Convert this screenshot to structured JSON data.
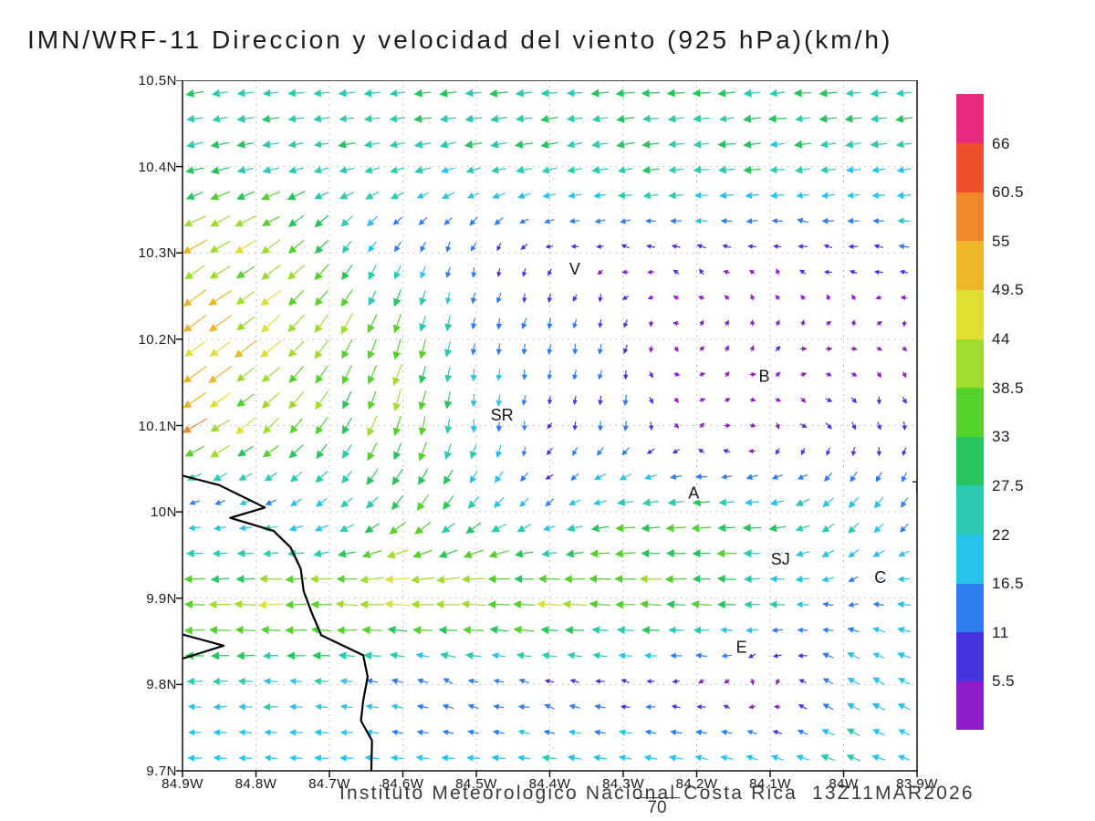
{
  "title": "IMN/WRF-11 Direccion y velocidad del viento (925 hPa)(km/h)",
  "footer": {
    "credit": "Instituto Meteorologico Nacional Costa Rica",
    "timestamp": "13Z11MAR2026",
    "stray_value": "70"
  },
  "chart_data": {
    "type": "vector-field",
    "units": "km/h",
    "map_extent": {
      "lon": [
        -84.9,
        -83.9
      ],
      "lat": [
        9.7,
        10.5
      ]
    },
    "x_ticks": {
      "values": [
        -84.9,
        -84.8,
        -84.7,
        -84.6,
        -84.5,
        -84.4,
        -84.3,
        -84.2,
        -84.1,
        -84.0,
        -83.9
      ],
      "labels": [
        "84.9W",
        "84.8W",
        "84.7W",
        "84.6W",
        "84.5W",
        "84.4W",
        "84.3W",
        "84.2W",
        "84.1W",
        "84W",
        "83.9W"
      ]
    },
    "y_ticks": {
      "values": [
        10.5,
        10.4,
        10.3,
        10.2,
        10.1,
        10.0,
        9.9,
        9.8,
        9.7
      ],
      "labels": [
        "10.5N",
        "10.4N",
        "10.3N",
        "10.2N",
        "10.1N",
        "10N",
        "9.9N",
        "9.8N",
        "9.7N"
      ]
    },
    "colorbar": {
      "levels": [
        5.5,
        11,
        16.5,
        22,
        27.5,
        33,
        38.5,
        44,
        49.5,
        55,
        60.5,
        66
      ],
      "labels": [
        "5.5",
        "11",
        "16.5",
        "22",
        "27.5",
        "33",
        "38.5",
        "44",
        "49.5",
        "55",
        "60.5",
        "66"
      ],
      "colors": [
        "#8e1cc8",
        "#4533e0",
        "#2d7df0",
        "#29c3ea",
        "#2acbb1",
        "#28c55e",
        "#55d22b",
        "#a0dc2c",
        "#e0e032",
        "#ecb62b",
        "#f1872b",
        "#f0512d",
        "#ec2a7d"
      ]
    },
    "stations": [
      {
        "label": "V",
        "lon": -84.366,
        "lat": 10.281
      },
      {
        "label": "SR",
        "lon": -84.465,
        "lat": 10.112
      },
      {
        "label": "B",
        "lon": -84.108,
        "lat": 10.157
      },
      {
        "label": "A",
        "lon": -84.204,
        "lat": 10.022
      },
      {
        "label": "SJ",
        "lon": -84.086,
        "lat": 9.945
      },
      {
        "label": "C",
        "lon": -83.95,
        "lat": 9.924
      },
      {
        "label": "E",
        "lon": -84.139,
        "lat": 9.843
      },
      {
        "label": "T",
        "lon": -83.9,
        "lat": 10.028
      }
    ],
    "coastline": [
      [
        [
          -84.9,
          10.042
        ],
        [
          -84.85,
          10.031
        ],
        [
          -84.788,
          10.005
        ],
        [
          -84.835,
          9.993
        ],
        [
          -84.776,
          9.978
        ],
        [
          -84.753,
          9.959
        ],
        [
          -84.739,
          9.934
        ],
        [
          -84.735,
          9.908
        ],
        [
          -84.724,
          9.883
        ],
        [
          -84.711,
          9.857
        ],
        [
          -84.654,
          9.834
        ],
        [
          -84.648,
          9.809
        ],
        [
          -84.654,
          9.781
        ],
        [
          -84.657,
          9.758
        ],
        [
          -84.642,
          9.735
        ],
        [
          -84.643,
          9.7
        ]
      ],
      [
        [
          -84.9,
          9.858
        ],
        [
          -84.844,
          9.845
        ],
        [
          -84.9,
          9.83
        ]
      ]
    ],
    "wind_grid": {
      "lats": [
        10.5,
        10.4,
        10.3,
        10.2,
        10.1,
        10.0,
        9.9,
        9.8,
        9.7
      ],
      "lons": [
        -84.9,
        -84.8,
        -84.7,
        -84.6,
        -84.5,
        -84.4,
        -84.3,
        -84.2,
        -84.1,
        -84.0,
        -83.9
      ],
      "u": [
        [
          -26,
          -25,
          -26,
          -26,
          -27,
          -27,
          -27,
          -26,
          -26,
          -25,
          -25
        ],
        [
          -30,
          -28,
          -24,
          -22,
          -24,
          -26,
          -27,
          -26,
          -24,
          -23,
          -22
        ],
        [
          -38,
          -34,
          -18,
          -6,
          -2,
          -4,
          -6,
          -8,
          -6,
          -10,
          -12
        ],
        [
          -42,
          -34,
          -22,
          -12,
          -2,
          -2,
          -2,
          2,
          4,
          4,
          2
        ],
        [
          -45,
          -30,
          -16,
          -10,
          -1,
          -2,
          0,
          4,
          3,
          5,
          1
        ],
        [
          -8,
          -13,
          -16,
          -20,
          -18,
          -12,
          -28,
          -30,
          -24,
          -18,
          -8
        ],
        [
          -40,
          -40,
          -42,
          -44,
          -44,
          -42,
          -40,
          -34,
          -26,
          -10,
          -20
        ],
        [
          -20,
          -20,
          -18,
          -12,
          -10,
          -10,
          -8,
          -4,
          3,
          -18,
          -16
        ],
        [
          -19,
          -19,
          -20,
          -20,
          -20,
          -21,
          -22,
          -22,
          -20,
          -20,
          -18
        ]
      ],
      "v": [
        [
          -3,
          -3,
          -2,
          -2,
          -2,
          -2,
          -2,
          -2,
          -2,
          -2,
          -2
        ],
        [
          -6,
          -6,
          -5,
          -6,
          -6,
          -5,
          -4,
          -3,
          -3,
          -3,
          -3
        ],
        [
          -24,
          -22,
          -24,
          -14,
          -10,
          -4,
          2,
          3,
          3,
          2,
          2
        ],
        [
          -28,
          -28,
          -32,
          -36,
          -16,
          -14,
          -10,
          3,
          4,
          2,
          -3
        ],
        [
          -25,
          -24,
          -28,
          -34,
          -20,
          -6,
          -14,
          3,
          -3,
          -8,
          -8
        ],
        [
          -2,
          -3,
          -10,
          -22,
          -20,
          -8,
          -3,
          -2,
          -3,
          -18,
          -14
        ],
        [
          0,
          0,
          1,
          1,
          2,
          2,
          1,
          1,
          1,
          -2,
          3
        ],
        [
          0,
          0,
          1,
          4,
          4,
          3,
          2,
          0,
          -6,
          12,
          9
        ],
        [
          1,
          1,
          1,
          1,
          2,
          3,
          4,
          5,
          7,
          8,
          6
        ]
      ]
    }
  }
}
